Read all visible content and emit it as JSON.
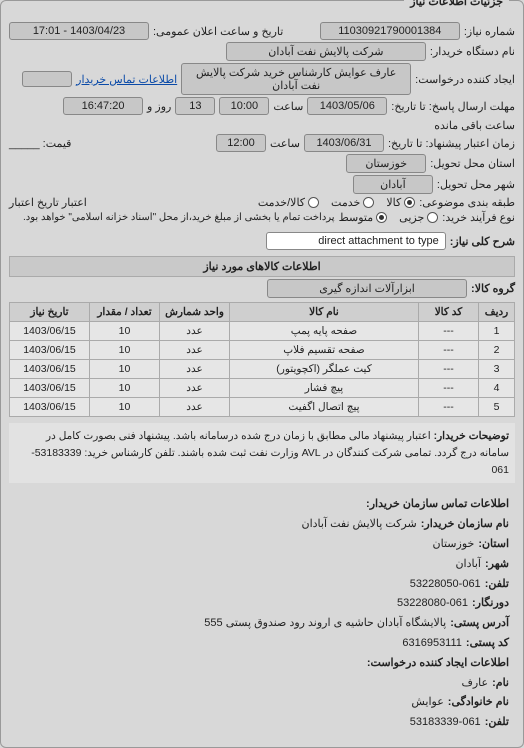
{
  "panel_title": "جزئیات اطلاعات نیاز",
  "header": {
    "need_number_label": "شماره نیاز:",
    "need_number": "11030921790001384",
    "announce_label": "تاریخ و ساعت اعلان عمومی:",
    "announce_value": "1403/04/23 - 17:01",
    "buyer_label": "نام دستگاه خریدار:",
    "buyer_value": "شرکت پالایش نفت آبادان",
    "requester_label": "ایجاد کننده درخواست:",
    "requester_value": "عارف عوایش کارشناس خرید شرکت پالایش نفت آبادان",
    "buyer_contact_label": "اطلاعات تماس خریدار",
    "buyer_contact_value": ""
  },
  "deadlines": {
    "reply_deadline_label": "مهلت ارسال پاسخ: تا تاریخ:",
    "reply_date": "1403/05/06",
    "time_label": "ساعت",
    "reply_time": "10:00",
    "days_left": "13",
    "days_left_suffix": "روز و",
    "time_left": "16:47:20",
    "time_left_suffix": "ساعت باقی مانده",
    "validity_label": "زمان اعتبار پیشنهاد: تا تاریخ:",
    "validity_date": "1403/06/31",
    "validity_time": "12:00",
    "province_label": "استان محل تحویل:",
    "province": "خوزستان",
    "city_label": "شهر محل تحویل:",
    "city": "آبادان"
  },
  "classification": {
    "subject_type_label": "طبقه بندی موضوعی:",
    "radios": [
      {
        "label": "کالا",
        "checked": true
      },
      {
        "label": "خدمت",
        "checked": false
      },
      {
        "label": "کالا/خدمت",
        "checked": false
      }
    ],
    "credit_date_label": "اعتبار تاریخ اعتبار",
    "process_label": "نوع فرآیند خرید:",
    "process_radios": [
      {
        "label": "جزیی",
        "checked": false
      },
      {
        "label": "متوسط",
        "checked": true
      }
    ],
    "process_note": "پرداخت تمام یا بخشی از مبلغ خرید،از محل \"اسناد خزانه اسلامی\" خواهد بود.",
    "price_label": "قیمت: _____"
  },
  "need_desc": {
    "label": "شرح کلی نیاز:",
    "value": "direct attachment to type"
  },
  "goods": {
    "section_title": "اطلاعات کالاهای مورد نیاز",
    "group_label": "گروه کالا:",
    "group_value": "ابزارآلات اندازه گیری",
    "table": {
      "columns": [
        "ردیف",
        "کد کالا",
        "نام کالا",
        "واحد شمارش",
        "تعداد / مقدار",
        "تاریخ نیاز"
      ],
      "col_widths": [
        "36px",
        "60px",
        "auto",
        "70px",
        "70px",
        "80px"
      ],
      "rows": [
        [
          "1",
          "---",
          "صفحه پایه پمپ",
          "عدد",
          "10",
          "1403/06/15"
        ],
        [
          "2",
          "---",
          "صفحه تقسیم فلاپ",
          "عدد",
          "10",
          "1403/06/15"
        ],
        [
          "3",
          "---",
          "کیت عملگر (اکچویتور)",
          "عدد",
          "10",
          "1403/06/15"
        ],
        [
          "4",
          "---",
          "پیچ فشار",
          "عدد",
          "10",
          "1403/06/15"
        ],
        [
          "5",
          "---",
          "پیچ اتصال اگفیت",
          "عدد",
          "10",
          "1403/06/15"
        ]
      ]
    }
  },
  "note": {
    "label": "توضیحات خریدار:",
    "text": "اعتبار پیشنهاد مالی مطابق با زمان درج شده درسامانه باشد. پیشنهاد فنی بصورت کامل در سامانه درج گردد. تمامی شرکت کنندگان در AVL وزارت نفت ثبت شده باشند. تلفن کارشناس خرید: 53183339-061"
  },
  "contact": {
    "section_title": "اطلاعات تماس سازمان خریدار:",
    "org_label": "نام سازمان خریدار:",
    "org": "شرکت پالایش نفت آبادان",
    "province_label": "استان:",
    "province": "خوزستان",
    "city_label": "شهر:",
    "city": "آبادان",
    "phone_label": "تلفن:",
    "phone": "53228050-061",
    "fax_label": "دورنگار:",
    "fax": "53228080-061",
    "address_label": "آدرس پستی:",
    "address": "پالایشگاه آبادان حاشیه ی اروند رود صندوق پستی 555",
    "postcode_label": "کد پستی:",
    "postcode": "6316953111",
    "requester_section": "اطلاعات ایجاد کننده درخواست:",
    "name_label": "نام:",
    "name": "عارف",
    "family_label": "نام خانوادگی:",
    "family": "عوایش",
    "tel_label": "تلفن:",
    "tel": "53183339-061"
  }
}
